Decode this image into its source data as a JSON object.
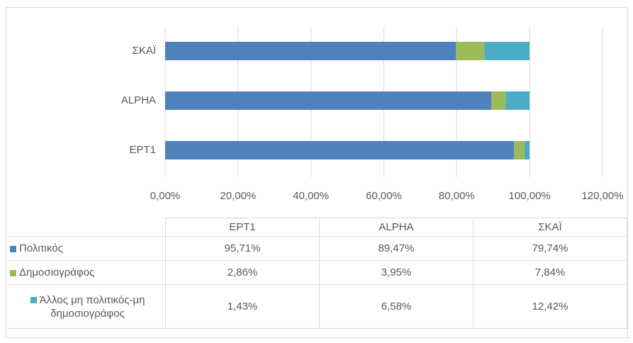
{
  "chart_data": {
    "type": "bar",
    "orientation": "horizontal",
    "stacked": true,
    "categories": [
      "EPT1",
      "ALPHA",
      "ΣΚΑΪ"
    ],
    "series": [
      {
        "name": "Πολιτικός",
        "color": "#4f81bd",
        "values": [
          95.71,
          89.47,
          79.74
        ],
        "value_labels": [
          "95,71%",
          "89,47%",
          "79,74%"
        ]
      },
      {
        "name": "Δημοσιογράφος",
        "color": "#9bbb59",
        "values": [
          2.86,
          3.95,
          7.84
        ],
        "value_labels": [
          "2,86%",
          "3,95%",
          "7,84%"
        ]
      },
      {
        "name": "Άλλος μη πολιτικός-μη δημοσιογράφος",
        "color": "#4bacc6",
        "values": [
          1.43,
          6.58,
          12.42
        ],
        "value_labels": [
          "1,43%",
          "6,58%",
          "12,42%"
        ]
      }
    ],
    "xlim": [
      0,
      120
    ],
    "xticks": [
      {
        "value": 0,
        "label": "0,00%"
      },
      {
        "value": 20,
        "label": "20,00%"
      },
      {
        "value": 40,
        "label": "40,00%"
      },
      {
        "value": 60,
        "label": "60,00%"
      },
      {
        "value": 80,
        "label": "80,00%"
      },
      {
        "value": 100,
        "label": "100,00%"
      },
      {
        "value": 120,
        "label": "120,00%"
      }
    ],
    "grid": true,
    "data_table": true
  }
}
